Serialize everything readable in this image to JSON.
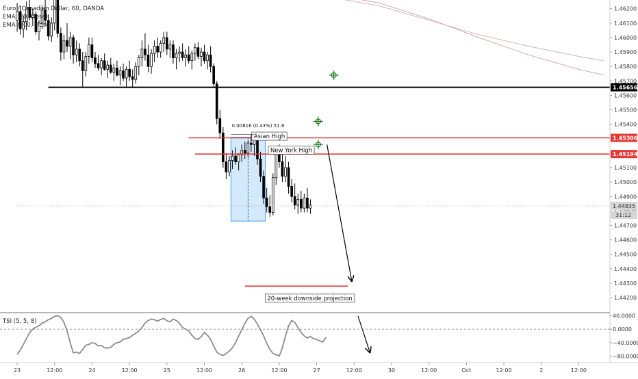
{
  "header": {
    "symbol": "Euro / Canadian Dollar, 60, OANDA",
    "indicators": [
      "EMA (20, close)",
      "EMA (200, close)"
    ]
  },
  "chart_data": {
    "type": "candlestick",
    "symbol": "EURCAD",
    "timeframe": "60",
    "source": "OANDA",
    "y_ticks": [
      1.462,
      1.461,
      1.46,
      1.459,
      1.458,
      1.457,
      1.456,
      1.455,
      1.454,
      1.453,
      1.452,
      1.451,
      1.45,
      1.449,
      1.448,
      1.447,
      1.446,
      1.445,
      1.444,
      1.443,
      1.442
    ],
    "y_tick_labels": [
      "1.46200",
      "1.46100",
      "1.46000",
      "1.45900",
      "1.45800",
      "1.45700",
      "1.45600",
      "1.45500",
      "1.45400",
      "1.45300",
      "1.45200",
      "1.45100",
      "1.45000",
      "1.44900",
      "1.44800",
      "1.44700",
      "1.44600",
      "1.44500",
      "1.44400",
      "1.44300",
      "1.44200"
    ],
    "ylim": [
      1.4412,
      1.4626
    ],
    "x_labels": [
      "23",
      "12:00",
      "24",
      "12:00",
      "25",
      "12:00",
      "26",
      "12:00",
      "27",
      "12:00",
      "30",
      "12:00",
      "Oct",
      "12:00",
      "2",
      "12:00"
    ],
    "x_label_bars": [
      0,
      12,
      24,
      36,
      48,
      60,
      72,
      84,
      96,
      108,
      120,
      132,
      144,
      156,
      168,
      180
    ],
    "x_range": [
      -5.5,
      190
    ],
    "last_price": 1.44835,
    "last_price_label": "1.44835",
    "countdown": "31:12",
    "candles": [
      [
        1.4612,
        1.4624,
        1.4604,
        1.4618
      ],
      [
        1.4618,
        1.4622,
        1.4602,
        1.4606
      ],
      [
        1.4606,
        1.4615,
        1.46,
        1.4611
      ],
      [
        1.4611,
        1.4625,
        1.4605,
        1.4621
      ],
      [
        1.4621,
        1.4628,
        1.4612,
        1.4614
      ],
      [
        1.4614,
        1.462,
        1.4608,
        1.4616
      ],
      [
        1.4616,
        1.4618,
        1.4602,
        1.4604
      ],
      [
        1.4604,
        1.4612,
        1.4598,
        1.461
      ],
      [
        1.461,
        1.4622,
        1.4606,
        1.4619
      ],
      [
        1.4619,
        1.4626,
        1.4608,
        1.4612
      ],
      [
        1.4612,
        1.4616,
        1.4598,
        1.4601
      ],
      [
        1.4601,
        1.4614,
        1.4597,
        1.461
      ],
      [
        1.461,
        1.463,
        1.4605,
        1.4628
      ],
      [
        1.4628,
        1.4632,
        1.46,
        1.4603
      ],
      [
        1.4603,
        1.4607,
        1.4584,
        1.459
      ],
      [
        1.459,
        1.4602,
        1.4585,
        1.4598
      ],
      [
        1.4598,
        1.461,
        1.459,
        1.4594
      ],
      [
        1.4594,
        1.4604,
        1.4585,
        1.46
      ],
      [
        1.46,
        1.4602,
        1.4582,
        1.4588
      ],
      [
        1.4588,
        1.4598,
        1.4583,
        1.4592
      ],
      [
        1.4592,
        1.4596,
        1.458,
        1.4584
      ],
      [
        1.4584,
        1.459,
        1.4566,
        1.4577
      ],
      [
        1.4577,
        1.459,
        1.4573,
        1.4587
      ],
      [
        1.4587,
        1.46,
        1.4582,
        1.4595
      ],
      [
        1.4595,
        1.46,
        1.4583,
        1.4586
      ],
      [
        1.4586,
        1.459,
        1.4579,
        1.4582
      ],
      [
        1.4582,
        1.4588,
        1.4577,
        1.4579
      ],
      [
        1.4579,
        1.4586,
        1.4574,
        1.4584
      ],
      [
        1.4584,
        1.4589,
        1.4577,
        1.4578
      ],
      [
        1.4578,
        1.4584,
        1.4572,
        1.4581
      ],
      [
        1.4581,
        1.4586,
        1.4575,
        1.4576
      ],
      [
        1.4576,
        1.4582,
        1.457,
        1.4579
      ],
      [
        1.4579,
        1.4584,
        1.4573,
        1.4574
      ],
      [
        1.4574,
        1.458,
        1.4567,
        1.4577
      ],
      [
        1.4577,
        1.4582,
        1.457,
        1.4572
      ],
      [
        1.4572,
        1.458,
        1.4566,
        1.4578
      ],
      [
        1.4578,
        1.4584,
        1.457,
        1.4573
      ],
      [
        1.4573,
        1.4578,
        1.4565,
        1.4571
      ],
      [
        1.4571,
        1.4583,
        1.4568,
        1.458
      ],
      [
        1.458,
        1.4588,
        1.4574,
        1.4586
      ],
      [
        1.4586,
        1.4598,
        1.458,
        1.4592
      ],
      [
        1.4592,
        1.4603,
        1.4584,
        1.4588
      ],
      [
        1.4588,
        1.4595,
        1.4576,
        1.458
      ],
      [
        1.458,
        1.4592,
        1.4575,
        1.4589
      ],
      [
        1.4589,
        1.4598,
        1.4583,
        1.4594
      ],
      [
        1.4594,
        1.46,
        1.4586,
        1.459
      ],
      [
        1.459,
        1.4598,
        1.4586,
        1.4596
      ],
      [
        1.4596,
        1.4604,
        1.459,
        1.46
      ],
      [
        1.46,
        1.4604,
        1.4588,
        1.4592
      ],
      [
        1.4592,
        1.4598,
        1.4586,
        1.4595
      ],
      [
        1.4595,
        1.4598,
        1.4582,
        1.4586
      ],
      [
        1.4586,
        1.4592,
        1.4578,
        1.4589
      ],
      [
        1.4589,
        1.4594,
        1.4583,
        1.459
      ],
      [
        1.459,
        1.4596,
        1.4584,
        1.4586
      ],
      [
        1.4586,
        1.4592,
        1.458,
        1.4588
      ],
      [
        1.4588,
        1.4594,
        1.4582,
        1.4584
      ],
      [
        1.4584,
        1.4591,
        1.4578,
        1.4589
      ],
      [
        1.4589,
        1.4596,
        1.4584,
        1.4593
      ],
      [
        1.4593,
        1.4597,
        1.4585,
        1.4587
      ],
      [
        1.4587,
        1.4593,
        1.458,
        1.459
      ],
      [
        1.459,
        1.4595,
        1.4582,
        1.4584
      ],
      [
        1.4584,
        1.459,
        1.4578,
        1.4588
      ],
      [
        1.4588,
        1.4594,
        1.4576,
        1.458
      ],
      [
        1.458,
        1.4582,
        1.4566,
        1.4568
      ],
      [
        1.4568,
        1.457,
        1.454,
        1.4544
      ],
      [
        1.4544,
        1.455,
        1.453,
        1.4534
      ],
      [
        1.4534,
        1.4538,
        1.451,
        1.4514
      ],
      [
        1.4514,
        1.452,
        1.4502,
        1.4507
      ],
      [
        1.4507,
        1.4518,
        1.4504,
        1.4515
      ],
      [
        1.4515,
        1.4522,
        1.4509,
        1.4518
      ],
      [
        1.4518,
        1.4524,
        1.4512,
        1.4514
      ],
      [
        1.4514,
        1.452,
        1.4508,
        1.4519
      ],
      [
        1.4519,
        1.4526,
        1.4514,
        1.4522
      ],
      [
        1.4522,
        1.4528,
        1.4516,
        1.452
      ],
      [
        1.452,
        1.4529,
        1.4517,
        1.4527
      ],
      [
        1.4527,
        1.4533,
        1.4521,
        1.4526
      ],
      [
        1.4526,
        1.4532,
        1.4518,
        1.4529
      ],
      [
        1.4529,
        1.4533,
        1.4512,
        1.4516
      ],
      [
        1.4516,
        1.4521,
        1.45,
        1.4504
      ],
      [
        1.4504,
        1.4508,
        1.4485,
        1.4489
      ],
      [
        1.4489,
        1.4496,
        1.4479,
        1.4483
      ],
      [
        1.4483,
        1.4491,
        1.4476,
        1.4479
      ],
      [
        1.4479,
        1.4506,
        1.4477,
        1.4503
      ],
      [
        1.4503,
        1.4524,
        1.4498,
        1.452
      ],
      [
        1.452,
        1.4526,
        1.451,
        1.4514
      ],
      [
        1.4514,
        1.452,
        1.45,
        1.4504
      ],
      [
        1.4504,
        1.4518,
        1.45,
        1.451
      ],
      [
        1.451,
        1.4514,
        1.4492,
        1.4497
      ],
      [
        1.4497,
        1.4502,
        1.4486,
        1.449
      ],
      [
        1.449,
        1.4499,
        1.4481,
        1.4484
      ],
      [
        1.4484,
        1.4492,
        1.4478,
        1.4488
      ],
      [
        1.4488,
        1.4494,
        1.4479,
        1.4482
      ],
      [
        1.4482,
        1.4492,
        1.4479,
        1.4489
      ],
      [
        1.4489,
        1.4496,
        1.4479,
        1.4482
      ],
      [
        1.4482,
        1.4488,
        1.4478,
        1.4484
      ]
    ],
    "ema_20": [
      [
        100,
        1.4628
      ],
      [
        116,
        1.4622
      ],
      [
        132,
        1.4612
      ],
      [
        148,
        1.4602
      ],
      [
        164,
        1.4594
      ],
      [
        180,
        1.4587
      ],
      [
        188,
        1.4584
      ]
    ],
    "ema_200": [
      [
        100,
        1.463
      ],
      [
        116,
        1.4624
      ],
      [
        132,
        1.4613
      ],
      [
        148,
        1.46
      ],
      [
        164,
        1.4588
      ],
      [
        180,
        1.4578
      ],
      [
        188,
        1.4574
      ]
    ],
    "levels": [
      {
        "price": 1.45656,
        "label": "1.45656",
        "color": "#000000",
        "from_bar": 10,
        "to_edge": true
      },
      {
        "price": 1.45306,
        "label": "1.45306",
        "color": "#e53935",
        "from_bar": 55,
        "to_edge": true
      },
      {
        "price": 1.45194,
        "label": "1.45194",
        "color": "#e53935",
        "from_bar": 57,
        "to_edge": true
      },
      {
        "price": 1.4428,
        "label": "",
        "color": "#e53935",
        "from_bar": 73,
        "to_bar": 106,
        "to_edge": false
      }
    ],
    "annotations": {
      "asian_high_label": "Asian High",
      "new_york_high_label": "New York High",
      "projection_label": "20-week downside projection",
      "measure_label": "0.00816 (0.43%) 51.8"
    },
    "range_box": {
      "from_bar": 69,
      "to_bar": 79,
      "top": 1.4531,
      "bottom": 1.4473
    },
    "tsi": {
      "label": "TSI (5, 5, 8)",
      "y_ticks": [
        40,
        0,
        -40,
        -80
      ],
      "y_tick_labels": [
        "40.0000",
        "0.0000",
        "−40.0000",
        "−80.0000"
      ],
      "ylim": [
        -95,
        47
      ],
      "values": [
        -75,
        -62,
        -45,
        -28,
        -10,
        0,
        6,
        10,
        18,
        22,
        28,
        32,
        38,
        40,
        35,
        20,
        -5,
        -40,
        -70,
        -68,
        -72,
        -60,
        -48,
        -45,
        -40,
        -42,
        -50,
        -48,
        -55,
        -56,
        -54,
        -45,
        -40,
        -38,
        -30,
        -28,
        -25,
        -18,
        -12,
        -5,
        5,
        18,
        26,
        30,
        28,
        24,
        29,
        32,
        25,
        22,
        30,
        26,
        18,
        5,
        0,
        -5,
        -18,
        -28,
        -30,
        -22,
        -10,
        -18,
        -30,
        -50,
        -68,
        -75,
        -78,
        -72,
        -65,
        -55,
        -40,
        -20,
        -2,
        18,
        32,
        38,
        30,
        15,
        -2,
        -20,
        -42,
        -60,
        -72,
        -76,
        -80,
        -55,
        -20,
        10,
        26,
        20,
        5,
        -10,
        -20,
        -26,
        -22,
        -28,
        -30,
        -35,
        -38,
        -24
      ],
      "zero_line": 0
    },
    "grid": false,
    "legend_position": "top-left"
  }
}
